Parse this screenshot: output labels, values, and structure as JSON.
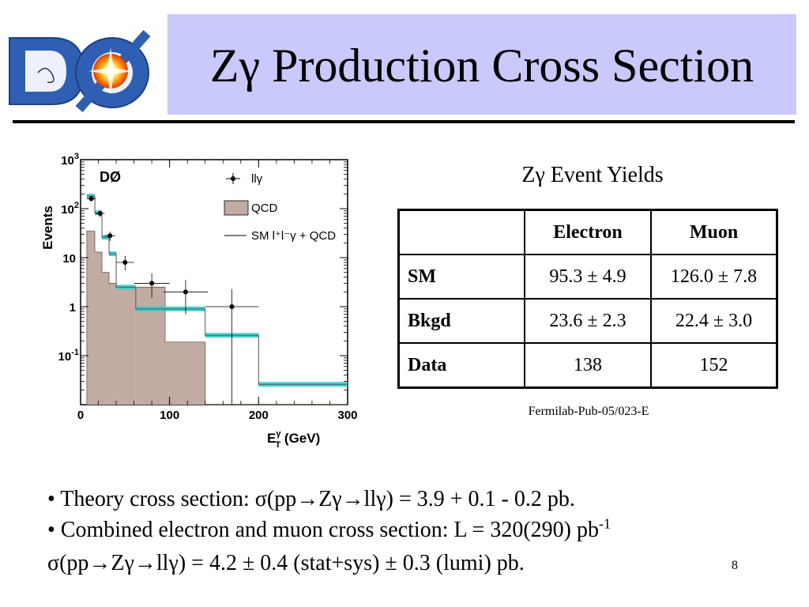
{
  "logo": {
    "text": "DØ"
  },
  "title": "Zγ Production Cross Section",
  "table": {
    "caption": "Zγ Event Yields",
    "headers": [
      "",
      "Electron",
      "Muon"
    ],
    "rows": [
      {
        "label": "SM",
        "electron": "95.3 ± 4.9",
        "muon": "126.0 ± 7.8"
      },
      {
        "label": "Bkgd",
        "electron": "23.6 ± 2.3",
        "muon": "22.4 ± 3.0"
      },
      {
        "label": "Data",
        "electron": "138",
        "muon": "152"
      }
    ]
  },
  "reference": "Fermilab-Pub-05/023-E",
  "bullets": {
    "line1": "• Theory cross section: σ(pp→Zγ→llγ) = 3.9 + 0.1 - 0.2 pb.",
    "line2": "• Combined electron and muon cross section:   L = 320(290) pb",
    "line2_sup": "-1",
    "line3": "σ(pp→Zγ→llγ) = 4.2 ± 0.4 (stat+sys) ± 0.3 (lumi) pb."
  },
  "page_number": "8",
  "chart_data": {
    "type": "histogram",
    "experiment_label": "DØ",
    "xlabel": "E",
    "xlabel_sup": "γ",
    "xlabel_sub": "T",
    "xlabel_unit": " (GeV)",
    "ylabel": "Events",
    "x_range": [
      0,
      300
    ],
    "y_range": [
      0.01,
      1000
    ],
    "y_scale": "log",
    "x_ticks": [
      "0",
      "100",
      "200",
      "300"
    ],
    "y_ticks": [
      {
        "value": 1000,
        "base": "10",
        "exp": "3"
      },
      {
        "value": 100,
        "base": "10",
        "exp": "2"
      },
      {
        "value": 10,
        "base": "10",
        "exp": ""
      },
      {
        "value": 1,
        "base": "1",
        "exp": ""
      },
      {
        "value": 0.1,
        "base": "10",
        "exp": "-1"
      }
    ],
    "legend": {
      "data_label": "llγ",
      "qcd_label": "QCD",
      "sm_label": "SM l⁺l⁻γ + QCD"
    },
    "bin_edges": [
      7,
      16,
      24,
      32,
      40,
      62,
      95,
      140,
      200,
      300
    ],
    "qcd": [
      35,
      13,
      5,
      3,
      2.5,
      2.5,
      0.19,
      0,
      0
    ],
    "sm_total": [
      180,
      82,
      26,
      12,
      2.5,
      0.9,
      0.9,
      0.26,
      0.026
    ],
    "data_points": [
      {
        "x": 12,
        "y": 160,
        "xerr": 5,
        "ylo": 140,
        "yhi": 182
      },
      {
        "x": 22,
        "y": 80,
        "xerr": 5,
        "ylo": 67,
        "yhi": 93
      },
      {
        "x": 33,
        "y": 28,
        "xerr": 6,
        "ylo": 22,
        "yhi": 34
      },
      {
        "x": 50,
        "y": 8,
        "xerr": 10,
        "ylo": 5.5,
        "yhi": 10.8
      },
      {
        "x": 80,
        "y": 3,
        "xerr": 20,
        "ylo": 1.5,
        "yhi": 4.8
      },
      {
        "x": 118,
        "y": 2,
        "xerr": 25,
        "ylo": 0.7,
        "yhi": 3.5
      },
      {
        "x": 170,
        "y": 1,
        "xerr": 30,
        "ylo": 0.01,
        "yhi": 2.3
      }
    ],
    "colors": {
      "qcd_fill": "#c2aba3",
      "sm_band": "#33cccc",
      "data": "#000000"
    }
  }
}
